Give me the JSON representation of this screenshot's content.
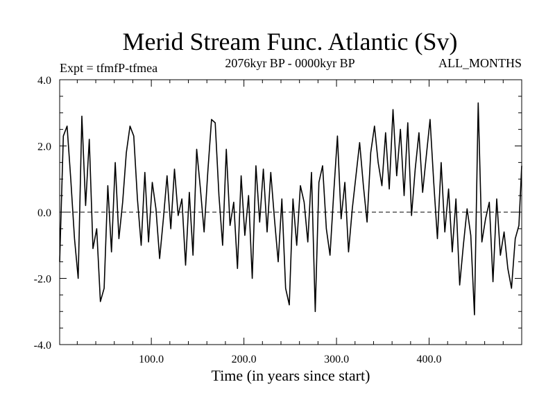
{
  "chart_data": {
    "type": "line",
    "title": "Merid Stream Func. Atlantic (Sv)",
    "subtitle": "2076kyr BP - 0000kyr BP",
    "expt_label": "Expt = tfmfP-tfmea",
    "season_label": "ALL_MONTHS",
    "xlabel": "Time (in years since start)",
    "ylabel": "",
    "xlim": [
      1,
      500
    ],
    "ylim": [
      -4.0,
      4.0
    ],
    "x_ticks": [
      100,
      200,
      300,
      400
    ],
    "x_tick_labels": [
      "100.0",
      "200.0",
      "300.0",
      "400.0"
    ],
    "y_ticks": [
      -4,
      -2,
      0,
      2,
      4
    ],
    "y_tick_labels": [
      "-4.0",
      "-2.0",
      "0.0",
      "2.0",
      "4.0"
    ],
    "zero_line": true,
    "series": [
      {
        "name": "Merid Stream Func. Atlantic",
        "x": [
          1,
          5,
          9,
          13,
          17,
          21,
          25,
          29,
          33,
          37,
          41,
          45,
          49,
          53,
          57,
          61,
          65,
          69,
          73,
          77,
          81,
          85,
          89,
          93,
          97,
          101,
          105,
          109,
          113,
          117,
          121,
          125,
          129,
          133,
          137,
          141,
          145,
          149,
          153,
          157,
          161,
          165,
          169,
          173,
          177,
          181,
          185,
          189,
          193,
          197,
          201,
          205,
          209,
          213,
          217,
          221,
          225,
          229,
          233,
          237,
          241,
          245,
          249,
          253,
          257,
          261,
          265,
          269,
          273,
          277,
          281,
          285,
          289,
          293,
          297,
          301,
          305,
          309,
          313,
          317,
          321,
          325,
          329,
          333,
          337,
          341,
          345,
          349,
          353,
          357,
          361,
          365,
          369,
          373,
          377,
          381,
          385,
          389,
          393,
          397,
          401,
          405,
          409,
          413,
          417,
          421,
          425,
          429,
          433,
          437,
          441,
          445,
          449,
          453,
          457,
          461,
          465,
          469,
          473,
          477,
          481,
          485,
          489,
          493,
          497,
          500
        ],
        "values": [
          -1.5,
          2.3,
          2.6,
          1.0,
          -0.8,
          -2.0,
          2.9,
          0.2,
          2.2,
          -1.1,
          -0.5,
          -2.7,
          -2.3,
          0.8,
          -1.2,
          1.5,
          -0.8,
          0.3,
          1.8,
          2.6,
          2.3,
          0.4,
          -1.0,
          1.2,
          -0.9,
          0.9,
          0.1,
          -1.4,
          -0.2,
          1.1,
          -0.5,
          1.3,
          -0.1,
          0.4,
          -1.6,
          0.6,
          -1.3,
          1.9,
          0.7,
          -0.6,
          1.2,
          2.8,
          2.7,
          0.5,
          -1.0,
          1.9,
          -0.4,
          0.3,
          -1.7,
          1.1,
          -0.7,
          0.5,
          -2.0,
          1.4,
          -0.3,
          1.3,
          -0.6,
          1.2,
          -0.2,
          -1.5,
          0.4,
          -2.3,
          -2.8,
          0.4,
          -1.0,
          0.8,
          0.3,
          -0.9,
          1.2,
          -3.0,
          0.9,
          1.4,
          -0.5,
          -1.3,
          0.6,
          2.3,
          -0.2,
          0.9,
          -1.2,
          0.1,
          1.1,
          2.1,
          0.8,
          -0.3,
          1.8,
          2.6,
          1.5,
          0.8,
          2.4,
          0.7,
          3.1,
          1.1,
          2.5,
          0.5,
          2.7,
          -0.1,
          1.3,
          2.4,
          0.6,
          1.7,
          2.8,
          0.9,
          -0.8,
          1.5,
          -0.6,
          0.7,
          -1.2,
          0.4,
          -2.2,
          -1.0,
          0.1,
          -0.7,
          -3.1,
          3.3,
          -0.9,
          -0.2,
          0.3,
          -2.1,
          0.4,
          -1.3,
          -0.6,
          -1.7,
          -2.3,
          -0.8,
          -0.4,
          1.4
        ]
      }
    ]
  }
}
